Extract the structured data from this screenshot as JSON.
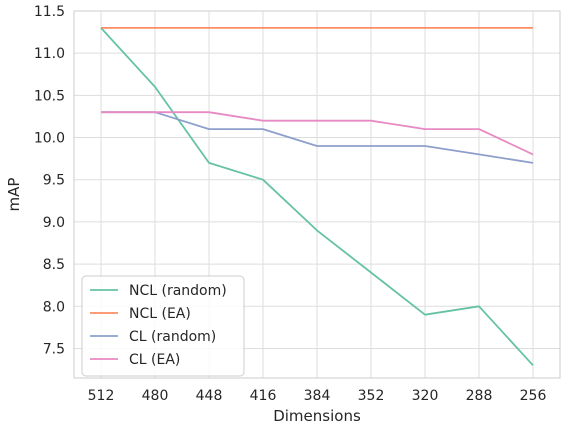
{
  "chart_data": {
    "type": "line",
    "xlabel": "Dimensions",
    "ylabel": "mAP",
    "x": [
      "512",
      "480",
      "448",
      "416",
      "384",
      "352",
      "320",
      "288",
      "256"
    ],
    "ylim": [
      7.15,
      11.5
    ],
    "yticks": [
      "7.5",
      "8.0",
      "8.5",
      "9.0",
      "9.5",
      "10.0",
      "10.5",
      "11.0",
      "11.5"
    ],
    "grid": true,
    "legend_position": "lower-left",
    "series": [
      {
        "name": "NCL (random)",
        "color": "#66c2a5",
        "values": [
          11.3,
          10.6,
          9.7,
          9.5,
          8.9,
          8.4,
          7.9,
          8.0,
          7.3
        ]
      },
      {
        "name": "NCL (EA)",
        "color": "#fc8d62",
        "values": [
          11.3,
          11.3,
          11.3,
          11.3,
          11.3,
          11.3,
          11.3,
          11.3,
          11.3
        ]
      },
      {
        "name": "CL (random)",
        "color": "#8da0cb",
        "values": [
          10.3,
          10.3,
          10.1,
          10.1,
          9.9,
          9.9,
          9.9,
          9.8,
          9.7
        ]
      },
      {
        "name": "CL (EA)",
        "color": "#e78ac3",
        "values": [
          10.3,
          10.3,
          10.3,
          10.2,
          10.2,
          10.2,
          10.1,
          10.1,
          9.8
        ]
      }
    ]
  }
}
